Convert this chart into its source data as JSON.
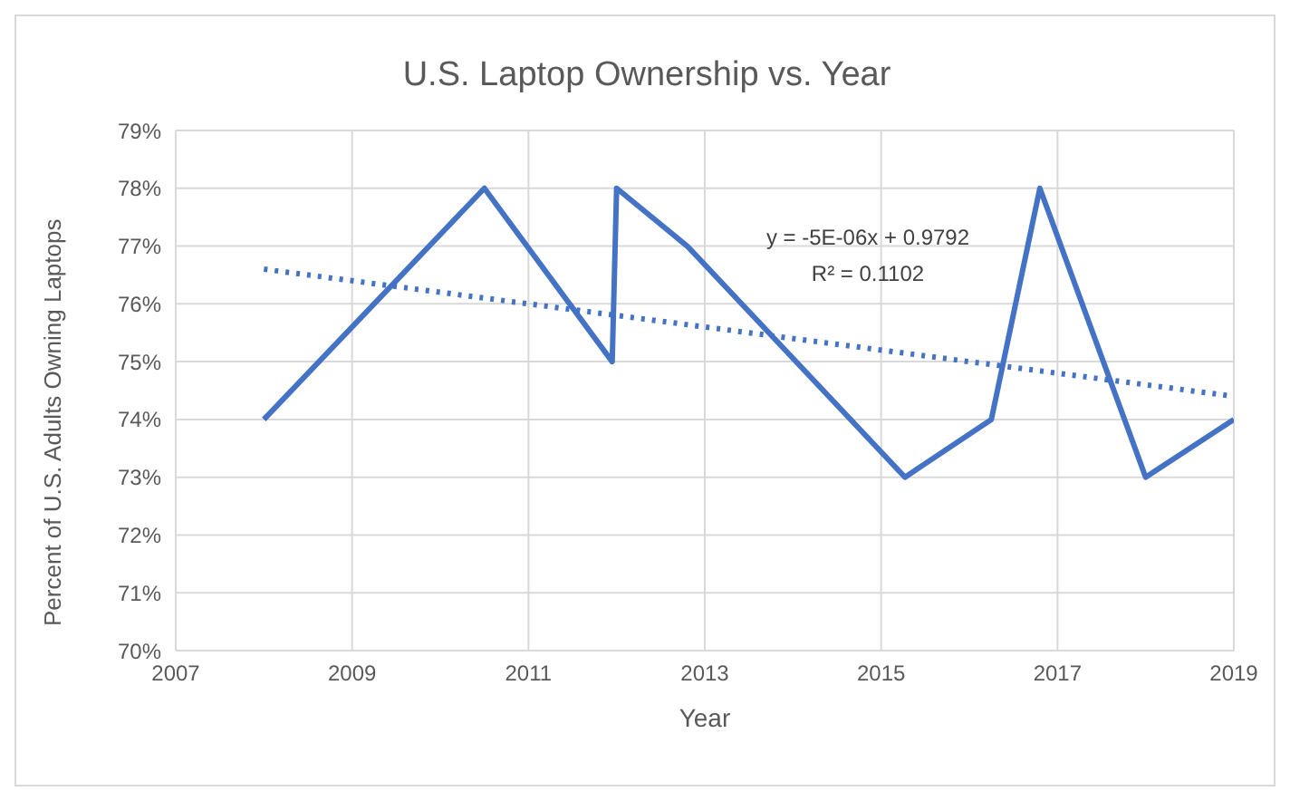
{
  "chart_data": {
    "type": "line",
    "title": "U.S. Laptop Ownership vs. Year",
    "xlabel": "Year",
    "ylabel": "Percent of U.S. Adults Owning Laptops",
    "annotations": [
      "y = -5E-06x + 0.9792",
      "R² = 0.1102"
    ],
    "x": [
      2008,
      2010.5,
      2011.95,
      2012,
      2012.8,
      2015.27,
      2016.25,
      2016.8,
      2018,
      2019
    ],
    "series": [
      {
        "color": "#4472c4",
        "values": [
          74,
          78,
          75,
          78,
          77,
          73,
          74,
          78,
          73,
          74
        ],
        "line_style": "solid"
      },
      {
        "type": "line",
        "color": "#4472c4",
        "x": [
          2008,
          2019
        ],
        "values": [
          76.6,
          74.4
        ],
        "line_style": "dotted"
      }
    ],
    "xlim": [
      2007,
      2019
    ],
    "xticks": [
      2007,
      2009,
      2011,
      2013,
      2015,
      2017,
      2019
    ],
    "ylim": [
      70,
      79
    ],
    "yticks": [
      {
        "value": 70,
        "label": "70%"
      },
      {
        "value": 71,
        "label": "71%"
      },
      {
        "value": 72,
        "label": "72%"
      },
      {
        "value": 73,
        "label": "73%"
      },
      {
        "value": 74,
        "label": "74%"
      },
      {
        "value": 75,
        "label": "75%"
      },
      {
        "value": 76,
        "label": "76%"
      },
      {
        "value": 77,
        "label": "77%"
      },
      {
        "value": 78,
        "label": "78%"
      },
      {
        "value": 79,
        "label": "79%"
      }
    ],
    "grid": true,
    "marker": "none"
  }
}
